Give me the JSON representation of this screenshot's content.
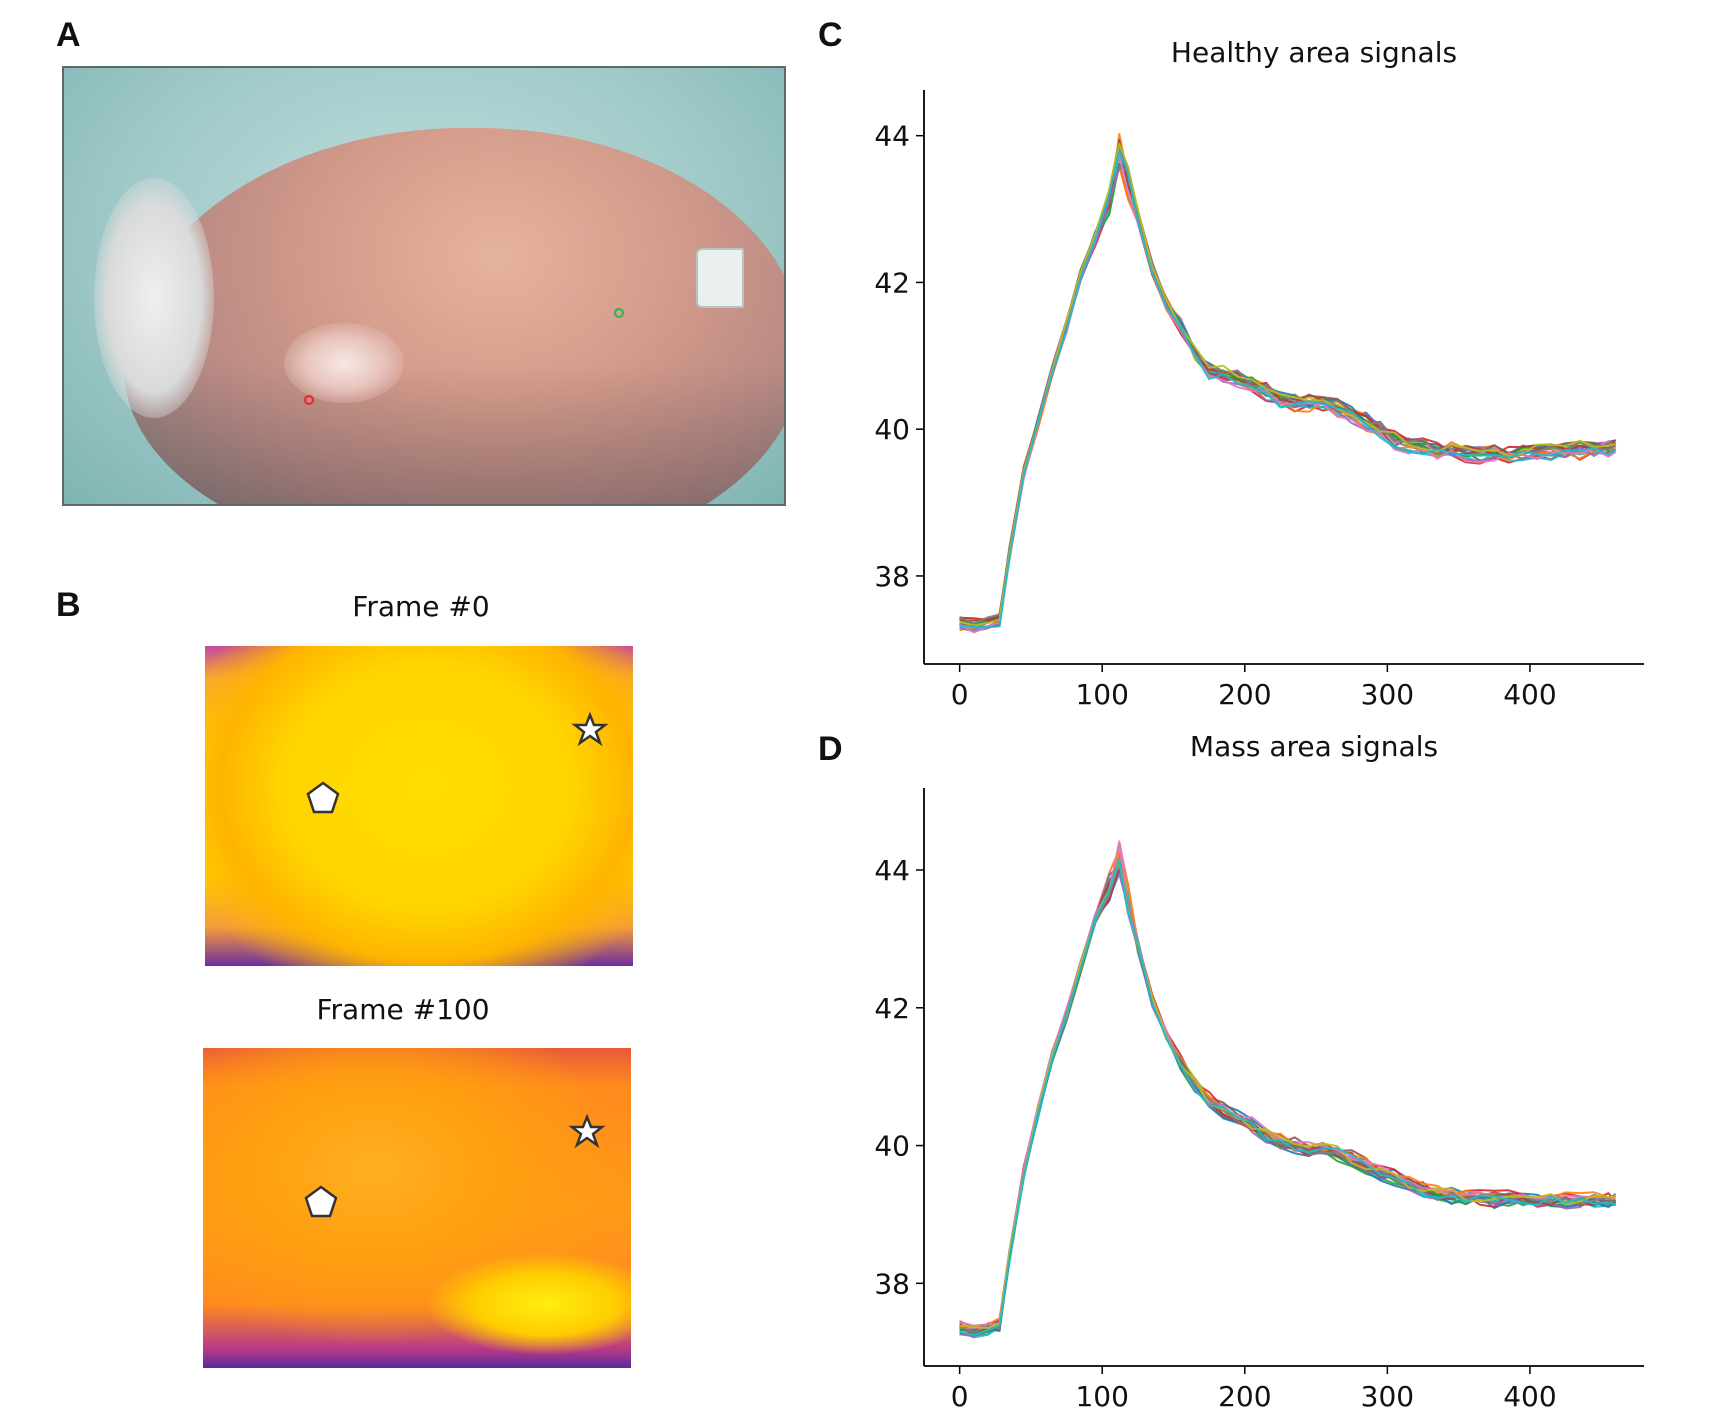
{
  "panels": {
    "a": {
      "label": "A"
    },
    "b": {
      "label": "B",
      "frame0_title": "Frame #0",
      "frame100_title": "Frame #100"
    },
    "c": {
      "label": "C"
    },
    "d": {
      "label": "D"
    }
  },
  "markers": {
    "mass_point_color": "#e8252a",
    "healthy_point_color": "#2fb34a",
    "mass_symbol": "pentagon-icon",
    "healthy_symbol": "star-icon"
  },
  "chart_data": [
    {
      "panel": "C",
      "type": "line",
      "title": "Healthy area signals",
      "xlabel": "",
      "ylabel": "",
      "xlim": [
        -25,
        480
      ],
      "ylim": [
        36.8,
        44.35
      ],
      "xticks": [
        0,
        100,
        200,
        300,
        400
      ],
      "yticks": [
        38,
        40,
        42,
        44
      ],
      "grid": false,
      "legend": "none",
      "series_count": 20,
      "x": [
        0,
        10,
        20,
        28,
        35,
        45,
        55,
        65,
        75,
        85,
        95,
        105,
        112,
        118,
        125,
        135,
        145,
        155,
        165,
        175,
        185,
        195,
        205,
        215,
        225,
        235,
        245,
        255,
        265,
        275,
        285,
        295,
        305,
        315,
        325,
        335,
        345,
        355,
        365,
        375,
        385,
        395,
        405,
        415,
        425,
        435,
        445,
        455,
        460
      ],
      "y": [
        37.35,
        37.32,
        37.35,
        37.4,
        38.3,
        39.4,
        40.1,
        40.8,
        41.4,
        42.1,
        42.6,
        43.1,
        43.75,
        43.4,
        42.9,
        42.2,
        41.7,
        41.4,
        41.0,
        40.8,
        40.75,
        40.7,
        40.6,
        40.5,
        40.4,
        40.35,
        40.35,
        40.35,
        40.3,
        40.2,
        40.1,
        40.0,
        39.85,
        39.8,
        39.75,
        39.7,
        39.7,
        39.68,
        39.65,
        39.68,
        39.65,
        39.68,
        39.7,
        39.68,
        39.7,
        39.72,
        39.72,
        39.75,
        39.75
      ],
      "colors": [
        "#1f77b4",
        "#ff7f0e",
        "#2ca02c",
        "#d62728",
        "#9467bd",
        "#8c564b",
        "#e377c2",
        "#7f7f7f",
        "#bcbd22",
        "#17becf",
        "#1f77b4",
        "#ff7f0e",
        "#2ca02c",
        "#d62728",
        "#9467bd",
        "#8c564b",
        "#e377c2",
        "#7f7f7f",
        "#bcbd22",
        "#17becf"
      ]
    },
    {
      "panel": "D",
      "type": "line",
      "title": "Mass area signals",
      "xlabel": "",
      "ylabel": "",
      "xlim": [
        -25,
        480
      ],
      "ylim": [
        36.8,
        44.9
      ],
      "xticks": [
        0,
        100,
        200,
        300,
        400
      ],
      "yticks": [
        38,
        40,
        42,
        44
      ],
      "grid": false,
      "legend": "none",
      "series_count": 20,
      "x": [
        0,
        10,
        20,
        28,
        35,
        45,
        55,
        65,
        75,
        85,
        95,
        105,
        112,
        118,
        125,
        135,
        145,
        155,
        165,
        175,
        185,
        195,
        205,
        215,
        225,
        235,
        245,
        255,
        265,
        275,
        285,
        295,
        305,
        315,
        325,
        335,
        345,
        355,
        365,
        375,
        385,
        395,
        405,
        415,
        425,
        435,
        445,
        455,
        460
      ],
      "y": [
        37.35,
        37.3,
        37.35,
        37.4,
        38.4,
        39.6,
        40.5,
        41.3,
        41.9,
        42.6,
        43.3,
        43.8,
        44.2,
        43.6,
        42.9,
        42.1,
        41.6,
        41.2,
        40.9,
        40.65,
        40.5,
        40.4,
        40.3,
        40.15,
        40.05,
        40.0,
        39.95,
        39.95,
        39.9,
        39.8,
        39.7,
        39.6,
        39.55,
        39.45,
        39.35,
        39.3,
        39.28,
        39.25,
        39.25,
        39.22,
        39.25,
        39.22,
        39.2,
        39.22,
        39.2,
        39.2,
        39.22,
        39.2,
        39.2
      ],
      "colors": [
        "#1f77b4",
        "#ff7f0e",
        "#2ca02c",
        "#d62728",
        "#9467bd",
        "#8c564b",
        "#e377c2",
        "#7f7f7f",
        "#bcbd22",
        "#17becf",
        "#1f77b4",
        "#ff7f0e",
        "#2ca02c",
        "#d62728",
        "#9467bd",
        "#8c564b",
        "#e377c2",
        "#7f7f7f",
        "#bcbd22",
        "#17becf"
      ]
    }
  ]
}
